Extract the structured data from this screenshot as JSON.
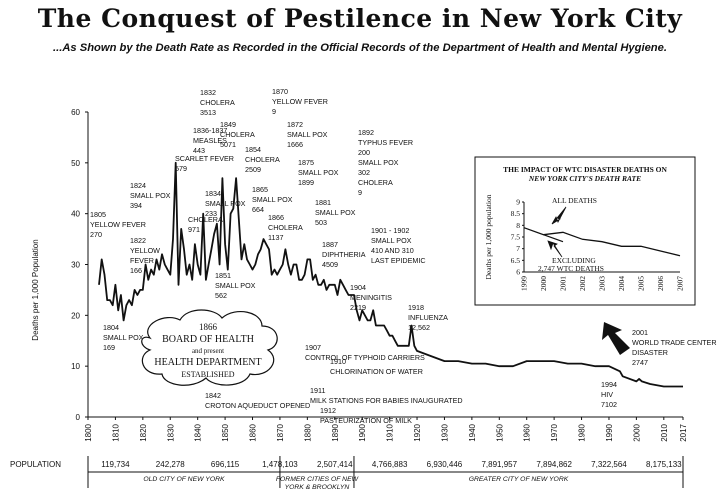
{
  "title": "The Conquest of Pestilence in New York City",
  "subtitle": "...As Shown by the Death Rate as Recorded in the Official Records of the Department of Health and Mental Hygiene.",
  "chart_data": {
    "type": "line",
    "ylabel": "Deaths per 1,000 Population",
    "xlim": [
      1800,
      2017
    ],
    "ylim": [
      0,
      60
    ],
    "x_ticks": [
      "1800",
      "1810",
      "1820",
      "1830",
      "1840",
      "1850",
      "1860",
      "1870",
      "1880",
      "1890",
      "1900",
      "1910",
      "1920",
      "1930",
      "1940",
      "1950",
      "1960",
      "1970",
      "1980",
      "1990",
      "2000",
      "2010",
      "2017"
    ],
    "y_ticks": [
      "0",
      "10",
      "20",
      "30",
      "40",
      "50",
      "60"
    ],
    "series": [
      {
        "x": [
          1804,
          1805,
          1806,
          1807,
          1808,
          1809,
          1810,
          1811,
          1812,
          1813,
          1814,
          1815,
          1816,
          1817,
          1818,
          1819,
          1820,
          1821,
          1822,
          1823,
          1824,
          1825,
          1826,
          1827,
          1828,
          1829,
          1830,
          1831,
          1832,
          1833,
          1834,
          1835,
          1836,
          1837,
          1838,
          1839,
          1840,
          1841,
          1842,
          1843,
          1844,
          1845,
          1846,
          1847,
          1848,
          1849,
          1850,
          1851,
          1852,
          1853,
          1854,
          1855,
          1856,
          1857,
          1858,
          1859,
          1860,
          1861,
          1862,
          1863,
          1864,
          1865,
          1866,
          1867,
          1868,
          1869,
          1870,
          1871,
          1872,
          1873,
          1874,
          1875,
          1876,
          1877,
          1878,
          1879,
          1880,
          1881,
          1882,
          1883,
          1884,
          1885,
          1886,
          1887,
          1888,
          1889,
          1890,
          1891,
          1892,
          1893,
          1894,
          1895,
          1896,
          1897,
          1898,
          1899,
          1900,
          1901,
          1902,
          1903,
          1904,
          1905,
          1906,
          1907,
          1908,
          1909,
          1910,
          1911,
          1912,
          1913,
          1914,
          1915,
          1916,
          1917,
          1918,
          1919,
          1920,
          1925,
          1930,
          1935,
          1940,
          1945,
          1950,
          1955,
          1960,
          1965,
          1970,
          1975,
          1980,
          1985,
          1990,
          1994,
          1995,
          2000,
          2001,
          2002,
          2005,
          2010,
          2015,
          2017
        ],
        "y": [
          26,
          31,
          28,
          23,
          23,
          22,
          26,
          21,
          24,
          19,
          22,
          23,
          22,
          25,
          24,
          25,
          25,
          30,
          27,
          29,
          28,
          31,
          29,
          32,
          30,
          29,
          28,
          35,
          50,
          26,
          37,
          33,
          28,
          30,
          27,
          34,
          30,
          28,
          40,
          27,
          30,
          33,
          36,
          38,
          30,
          47,
          34,
          29,
          40,
          41,
          47,
          39,
          31,
          34,
          31,
          30,
          29,
          30,
          32,
          33,
          35,
          34,
          33,
          28,
          29,
          28,
          29,
          30,
          33,
          30,
          28,
          30,
          30,
          27,
          27,
          28,
          31,
          31,
          27,
          28,
          26,
          26,
          27,
          25,
          26,
          26,
          26,
          24,
          27,
          26,
          25,
          24,
          24,
          24,
          21,
          19,
          21,
          20,
          19,
          19,
          21,
          18,
          18,
          18,
          18,
          17,
          16,
          16,
          15,
          14,
          14,
          14,
          14,
          14,
          18,
          14,
          13,
          12,
          11,
          11,
          10.5,
          10.5,
          10,
          10,
          11,
          11,
          11,
          10.5,
          10.5,
          10,
          10,
          9,
          8,
          7,
          7.5,
          7,
          6.5,
          6,
          6,
          6
        ]
      }
    ],
    "annotations": [
      {
        "x": 1804,
        "lines": [
          "1804",
          "SMALL POX",
          "169"
        ]
      },
      {
        "x": 1805,
        "lines": [
          "1805",
          "YELLOW FEVER",
          "270"
        ]
      },
      {
        "x": 1822,
        "lines": [
          "1822",
          "YELLOW",
          "FEVER",
          "166"
        ]
      },
      {
        "x": 1824,
        "lines": [
          "1824",
          "SMALL POX",
          "394"
        ]
      },
      {
        "x": 1832,
        "lines": [
          "1832",
          "CHOLERA",
          "3513"
        ]
      },
      {
        "x": 1836,
        "lines": [
          "1836-1837",
          "MEASLES",
          "443"
        ]
      },
      {
        "x": 1834,
        "lines": [
          "SCARLET FEVER",
          "579"
        ]
      },
      {
        "x": 1834,
        "lines": [
          "1834",
          "SMALL POX",
          "233"
        ]
      },
      {
        "x": 1832,
        "lines": [
          "CHOLERA",
          "971"
        ]
      },
      {
        "x": 1849,
        "lines": [
          "1849",
          "CHOLERA",
          "5071"
        ]
      },
      {
        "x": 1854,
        "lines": [
          "1854",
          "CHOLERA",
          "2509"
        ]
      },
      {
        "x": 1851,
        "lines": [
          "1851",
          "SMALL POX",
          "562"
        ]
      },
      {
        "x": 1865,
        "lines": [
          "1865",
          "SMALL POX",
          "664"
        ]
      },
      {
        "x": 1866,
        "lines": [
          "1866",
          "CHOLERA",
          "1137"
        ]
      },
      {
        "x": 1870,
        "lines": [
          "1870",
          "YELLOW FEVER",
          "9"
        ]
      },
      {
        "x": 1872,
        "lines": [
          "1872",
          "SMALL POX",
          "1666"
        ]
      },
      {
        "x": 1875,
        "lines": [
          "1875",
          "SMALL POX",
          "1899"
        ]
      },
      {
        "x": 1881,
        "lines": [
          "1881",
          "SMALL POX",
          "503"
        ]
      },
      {
        "x": 1887,
        "lines": [
          "1887",
          "DIPHTHERIA",
          "4509"
        ]
      },
      {
        "x": 1892,
        "lines": [
          "1892",
          "TYPHUS FEVER",
          "200",
          "SMALL POX",
          "302",
          "CHOLERA",
          "9"
        ]
      },
      {
        "x": 1901,
        "lines": [
          "1901 - 1902",
          "SMALL POX",
          "410 AND 310",
          "LAST EPIDEMIC"
        ]
      },
      {
        "x": 1904,
        "lines": [
          "1904",
          "MENINGITIS",
          "2219"
        ]
      },
      {
        "x": 1918,
        "lines": [
          "1918",
          "INFLUENZA",
          "12,562"
        ]
      },
      {
        "x": 1907,
        "lines": [
          "1907",
          "CONTROL OF TYPHOID CARRIERS"
        ]
      },
      {
        "x": 1910,
        "lines": [
          "1910",
          "CHLORINATION OF WATER"
        ]
      },
      {
        "x": 1911,
        "lines": [
          "1911",
          "MILK STATIONS FOR BABIES INAUGURATED"
        ]
      },
      {
        "x": 1912,
        "lines": [
          "1912",
          "PASTEURIZATION OF MILK"
        ]
      },
      {
        "x": 1842,
        "lines": [
          "1842",
          "CROTON AQUEDUCT OPENED"
        ]
      },
      {
        "x": 1994,
        "lines": [
          "1994",
          "HIV",
          "7102"
        ]
      },
      {
        "x": 2001,
        "lines": [
          "2001",
          "WORLD TRADE CENTER",
          "DISASTER",
          "2747"
        ]
      }
    ],
    "board_of_health": [
      "1866",
      "BOARD OF HEALTH",
      "and present",
      "HEALTH DEPARTMENT",
      "ESTABLISHED"
    ],
    "population": {
      "label": "POPULATION",
      "entries": [
        {
          "year": 1800,
          "value": ""
        },
        {
          "year": 1810,
          "value": "119,734"
        },
        {
          "year": 1830,
          "value": "242,278"
        },
        {
          "year": 1850,
          "value": "696,115"
        },
        {
          "year": 1870,
          "value": "1,478,103"
        },
        {
          "year": 1890,
          "value": "2,507,414"
        },
        {
          "year": 1910,
          "value": "4,766,883"
        },
        {
          "year": 1930,
          "value": "6,930,446"
        },
        {
          "year": 1950,
          "value": "7,891,957"
        },
        {
          "year": 1970,
          "value": "7,894,862"
        },
        {
          "year": 1990,
          "value": "7,322,564"
        },
        {
          "year": 2010,
          "value": "8,175,133"
        }
      ],
      "eras": [
        {
          "from": 1800,
          "to": 1870,
          "label": "OLD CITY OF NEW YORK"
        },
        {
          "from": 1870,
          "to": 1897,
          "label": "FORMER CITIES OF NEW YORK & BROOKLYN"
        },
        {
          "from": 1897,
          "to": 2017,
          "label": "GREATER CITY OF NEW YORK"
        }
      ]
    },
    "inset": {
      "title": [
        "THE IMPACT OF WTC DISASTER DEATHS ON",
        "NEW YORK CITY'S DEATH RATE"
      ],
      "ylabel": "Deaths per 1,000 population",
      "ylim": [
        6,
        9
      ],
      "y_ticks": [
        "6",
        "6.5",
        "7",
        "7.5",
        "8",
        "8.5",
        "9"
      ],
      "x_ticks": [
        "1999",
        "2000",
        "2001",
        "2002",
        "2003",
        "2004",
        "2005",
        "2006",
        "2007"
      ],
      "series": [
        {
          "name": "ALL DEATHS",
          "x": [
            1999,
            2000,
            2001,
            2002,
            2003,
            2004,
            2005,
            2006,
            2007
          ],
          "y": [
            7.9,
            7.6,
            7.7,
            7.4,
            7.3,
            7.1,
            7.1,
            6.9,
            6.7
          ]
        },
        {
          "name": "EXCLUDING 2,747 WTC DEATHS",
          "x": [
            2000,
            2001
          ],
          "y": [
            7.6,
            7.3
          ]
        }
      ],
      "labels": {
        "all": "ALL DEATHS",
        "excl1": "EXCLUDING",
        "excl2": "2,747 WTC DEATHS"
      }
    }
  }
}
